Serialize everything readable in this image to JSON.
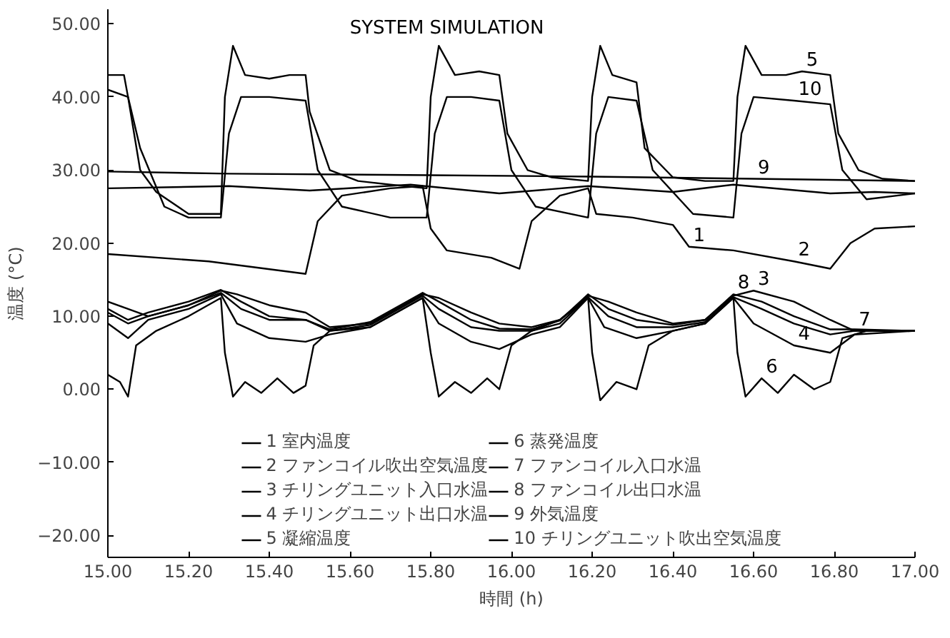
{
  "chart_data": {
    "type": "line",
    "title": "SYSTEM SIMULATION",
    "xlabel": "時間 (h)",
    "ylabel": "温度 (°C)",
    "xlim": [
      15.0,
      17.0
    ],
    "ylim": [
      -23,
      52
    ],
    "xticks": [
      {
        "value": 15.0,
        "label": "15.00"
      },
      {
        "value": 15.2,
        "label": "15.20"
      },
      {
        "value": 15.4,
        "label": "15.40"
      },
      {
        "value": 15.6,
        "label": "15.60"
      },
      {
        "value": 15.8,
        "label": "15.80"
      },
      {
        "value": 16.0,
        "label": "16.00"
      },
      {
        "value": 16.2,
        "label": "16.20"
      },
      {
        "value": 16.4,
        "label": "16.40"
      },
      {
        "value": 16.6,
        "label": "16.60"
      },
      {
        "value": 16.8,
        "label": "16.80"
      },
      {
        "value": 17.0,
        "label": "17.00"
      }
    ],
    "yticks": [
      {
        "value": -20,
        "label": "−20.00"
      },
      {
        "value": -10,
        "label": "−10.00"
      },
      {
        "value": 0,
        "label": "0.00"
      },
      {
        "value": 10,
        "label": "10.00"
      },
      {
        "value": 20,
        "label": "20.00"
      },
      {
        "value": 30,
        "label": "30.00"
      },
      {
        "value": 40,
        "label": "40.00"
      },
      {
        "value": 50,
        "label": "50.00"
      }
    ],
    "grid": false,
    "legend": "bottom",
    "marker": "none",
    "line_style": "solid",
    "series": [
      {
        "name": "1 室内温度",
        "color": "#000000",
        "x": [
          15.0,
          15.3,
          15.5,
          15.75,
          15.97,
          16.19,
          16.4,
          16.55,
          16.79,
          16.9,
          17.0
        ],
        "values": [
          27.5,
          27.8,
          27.2,
          28.0,
          26.8,
          27.8,
          27.0,
          28.0,
          26.8,
          27.0,
          26.8
        ]
      },
      {
        "name": "2 ファンコイル吹出空気温度",
        "color": "#000000",
        "x": [
          15.0,
          15.25,
          15.49,
          15.52,
          15.58,
          15.7,
          15.78,
          15.8,
          15.84,
          15.95,
          16.02,
          16.05,
          16.12,
          16.19,
          16.21,
          16.3,
          16.4,
          16.44,
          16.55,
          16.7,
          16.79,
          16.84,
          16.9,
          17.0
        ],
        "values": [
          18.5,
          17.5,
          15.8,
          23,
          26.5,
          27.5,
          27.8,
          22,
          19,
          18,
          16.5,
          23,
          26.5,
          27.5,
          24,
          23.5,
          22.5,
          19.5,
          19,
          17.5,
          16.5,
          20,
          22,
          22.3
        ]
      },
      {
        "name": "3 チリングユニット入口水温",
        "color": "#000000",
        "x": [
          15.0,
          15.05,
          15.1,
          15.2,
          15.28,
          15.32,
          15.4,
          15.49,
          15.55,
          15.65,
          15.78,
          15.82,
          15.9,
          15.97,
          16.05,
          16.12,
          16.19,
          16.24,
          16.31,
          16.4,
          16.48,
          16.55,
          16.6,
          16.7,
          16.79,
          16.85,
          17.0
        ],
        "values": [
          12,
          11,
          10,
          11.5,
          13.5,
          13,
          11.5,
          10.5,
          8.5,
          9,
          13,
          12.5,
          10.5,
          9,
          8.5,
          9.5,
          12.8,
          12,
          10.5,
          9,
          9.5,
          12.8,
          13.5,
          12,
          9.5,
          8,
          8
        ]
      },
      {
        "name": "4 チリングユニット出口水温",
        "color": "#000000",
        "x": [
          15.0,
          15.05,
          15.1,
          15.2,
          15.28,
          15.32,
          15.4,
          15.49,
          15.55,
          15.65,
          15.78,
          15.82,
          15.9,
          15.97,
          16.05,
          16.12,
          16.19,
          16.23,
          16.31,
          16.4,
          16.48,
          16.55,
          16.6,
          16.7,
          16.79,
          16.85,
          17.0
        ],
        "values": [
          9,
          7,
          9.5,
          11,
          13,
          9,
          7,
          6.5,
          7.5,
          8.5,
          12.5,
          9,
          6.5,
          5.5,
          7.5,
          8.5,
          12.5,
          8.5,
          7,
          8,
          9,
          12.5,
          9,
          6,
          5,
          7.5,
          8
        ]
      },
      {
        "name": "5 凝縮温度",
        "color": "#000000",
        "x": [
          15.0,
          15.04,
          15.05,
          15.08,
          15.12,
          15.2,
          15.28,
          15.29,
          15.31,
          15.34,
          15.4,
          15.45,
          15.49,
          15.5,
          15.55,
          15.62,
          15.7,
          15.79,
          15.8,
          15.82,
          15.86,
          15.92,
          15.97,
          15.99,
          16.04,
          16.1,
          16.19,
          16.2,
          16.22,
          16.25,
          16.31,
          16.33,
          16.4,
          16.48,
          16.55,
          16.56,
          16.58,
          16.62,
          16.68,
          16.72,
          16.79,
          16.81,
          16.86,
          16.92,
          17.0
        ],
        "values": [
          43,
          43,
          40,
          30,
          27,
          24,
          24,
          40,
          47,
          43,
          42.5,
          43,
          43,
          38,
          30,
          28.5,
          28,
          27.5,
          40,
          47,
          43,
          43.5,
          43,
          35,
          30,
          29,
          28.5,
          40,
          47,
          43,
          42,
          33,
          29,
          28.5,
          28.5,
          40,
          47,
          43,
          43,
          43.5,
          43,
          35,
          30,
          28.8,
          28.5
        ]
      },
      {
        "name": "6 蒸発温度",
        "color": "#000000",
        "x": [
          15.0,
          15.03,
          15.05,
          15.07,
          15.12,
          15.2,
          15.28,
          15.29,
          15.31,
          15.34,
          15.38,
          15.42,
          15.46,
          15.49,
          15.51,
          15.55,
          15.65,
          15.78,
          15.8,
          15.82,
          15.86,
          15.9,
          15.94,
          15.97,
          16.0,
          16.05,
          16.12,
          16.19,
          16.2,
          16.22,
          16.26,
          16.31,
          16.34,
          16.4,
          16.48,
          16.55,
          16.56,
          16.58,
          16.62,
          16.66,
          16.7,
          16.75,
          16.79,
          16.82,
          16.88,
          17.0
        ],
        "values": [
          2,
          1,
          -1,
          6,
          8,
          10,
          12.5,
          5,
          -1,
          1,
          -0.5,
          1.5,
          -0.5,
          0.5,
          6,
          8,
          8.5,
          12.5,
          5,
          -1,
          1,
          -0.5,
          1.5,
          0,
          6,
          8,
          9.5,
          12.5,
          5,
          -1.5,
          1,
          0,
          6,
          8,
          9,
          12.5,
          5,
          -1,
          1.5,
          -0.5,
          2,
          0,
          1,
          7,
          8,
          8
        ]
      },
      {
        "name": "7 ファンコイル入口水温",
        "color": "#000000",
        "x": [
          15.0,
          15.05,
          15.1,
          15.2,
          15.28,
          15.33,
          15.4,
          15.49,
          15.55,
          15.65,
          15.78,
          15.82,
          15.9,
          15.97,
          16.05,
          16.12,
          16.19,
          16.24,
          16.31,
          16.4,
          16.48,
          16.55,
          16.62,
          16.7,
          16.79,
          16.85,
          17.0
        ],
        "values": [
          10.5,
          9,
          10,
          11.5,
          13.2,
          11,
          9.5,
          9.5,
          8,
          8.8,
          12.8,
          11,
          8.5,
          8,
          8,
          9,
          12.6,
          10,
          8.5,
          8.5,
          9.2,
          12.6,
          11,
          9,
          7.5,
          8,
          8
        ]
      },
      {
        "name": "8 ファンコイル出口水温",
        "color": "#000000",
        "x": [
          15.0,
          15.05,
          15.1,
          15.2,
          15.28,
          15.33,
          15.4,
          15.49,
          15.55,
          15.65,
          15.78,
          15.82,
          15.9,
          15.97,
          16.05,
          16.12,
          16.19,
          16.24,
          16.31,
          16.4,
          16.48,
          16.55,
          16.62,
          16.7,
          16.79,
          16.85,
          17.0
        ],
        "values": [
          11,
          9.5,
          10.5,
          12,
          13.6,
          12,
          10,
          9.5,
          8.2,
          9.2,
          13.2,
          12,
          9.5,
          8.3,
          8.2,
          9.4,
          13,
          11,
          9.5,
          8.8,
          9.5,
          13,
          12,
          10,
          8.2,
          8.2,
          8
        ]
      },
      {
        "name": "9 外気温度",
        "color": "#000000",
        "x": [
          15.0,
          15.3,
          15.8,
          16.2,
          16.6,
          17.0
        ],
        "values": [
          29.8,
          29.5,
          29.3,
          29.1,
          28.8,
          28.5
        ]
      },
      {
        "name": "10 チリングユニット吹出空気温度",
        "color": "#000000",
        "x": [
          15.0,
          15.05,
          15.08,
          15.14,
          15.2,
          15.28,
          15.3,
          15.33,
          15.4,
          15.49,
          15.52,
          15.58,
          15.7,
          15.79,
          15.81,
          15.84,
          15.9,
          15.97,
          16.0,
          16.06,
          16.19,
          16.21,
          16.24,
          16.31,
          16.35,
          16.45,
          16.55,
          16.57,
          16.6,
          16.7,
          16.79,
          16.82,
          16.88,
          17.0
        ],
        "values": [
          41,
          40,
          33,
          25,
          23.5,
          23.5,
          35,
          40,
          40,
          39.5,
          30,
          25,
          23.5,
          23.5,
          35,
          40,
          40,
          39.5,
          30,
          25,
          23.5,
          35,
          40,
          39.5,
          30,
          24,
          23.5,
          35,
          40,
          39.5,
          39,
          30,
          26,
          26.8
        ]
      }
    ],
    "annotations": [
      {
        "text": "5",
        "x": 16.72,
        "y": 43.5
      },
      {
        "text": "10",
        "x": 16.7,
        "y": 39.5
      },
      {
        "text": "9",
        "x": 16.6,
        "y": 28.8
      },
      {
        "text": "1",
        "x": 16.44,
        "y": 19.5
      },
      {
        "text": "2",
        "x": 16.7,
        "y": 17.5
      },
      {
        "text": "3",
        "x": 16.6,
        "y": 13.5
      },
      {
        "text": "8",
        "x": 16.55,
        "y": 13
      },
      {
        "text": "7",
        "x": 16.85,
        "y": 8.0
      },
      {
        "text": "4",
        "x": 16.7,
        "y": 6.0
      },
      {
        "text": "6",
        "x": 16.62,
        "y": 1.5
      }
    ]
  }
}
